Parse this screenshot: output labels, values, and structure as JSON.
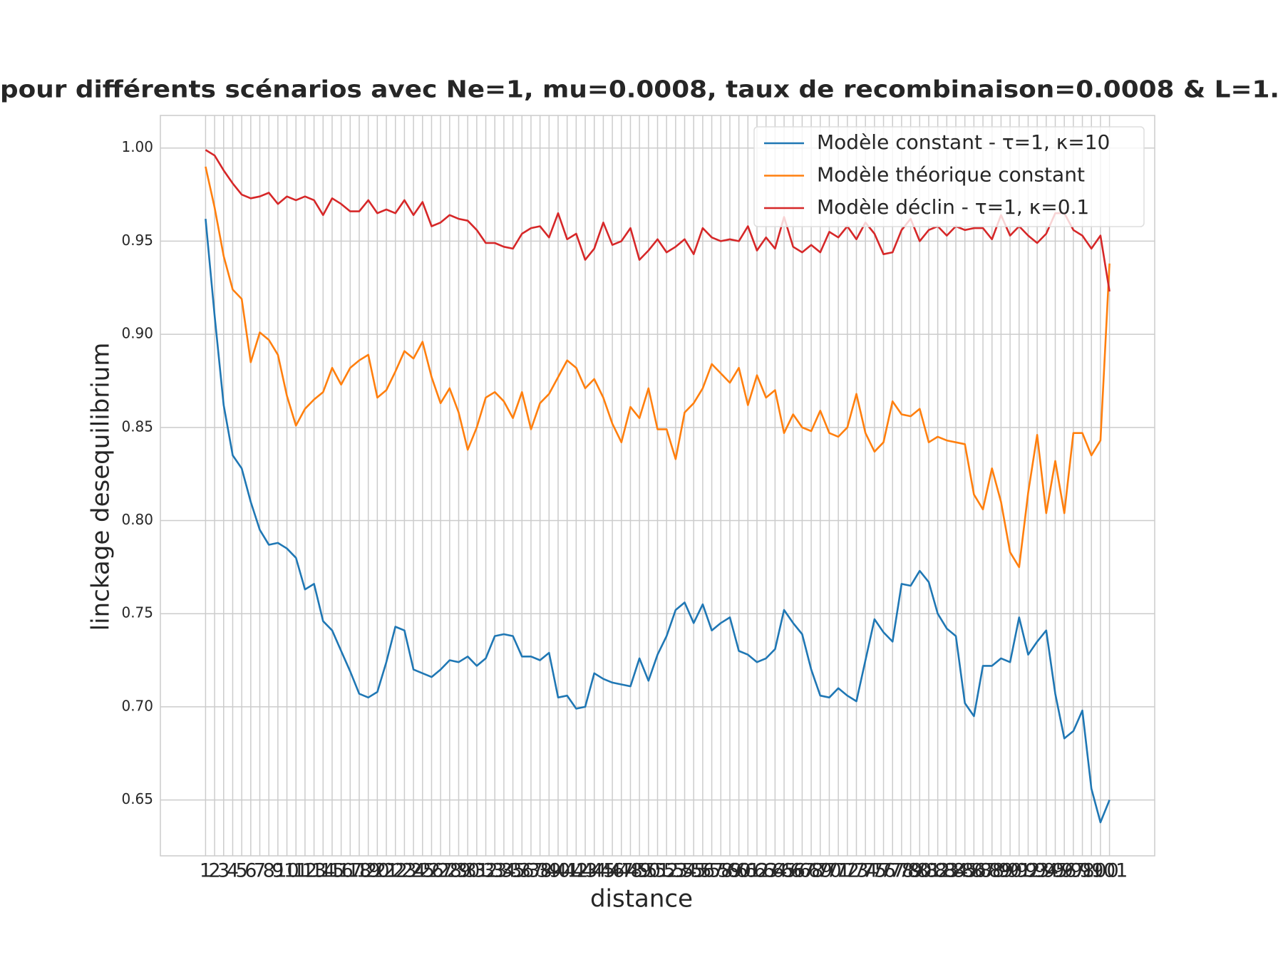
{
  "chart_data": {
    "type": "line",
    "title": "pour différents scénarios avec Ne=1, mu=0.0008, taux de recombinaison=0.0008 & L=1.",
    "x_label": "distance",
    "y_label": "linckage desequilibrium",
    "categories": [
      1,
      2,
      3,
      4,
      5,
      6,
      7,
      8,
      9,
      10,
      11,
      12,
      13,
      14,
      15,
      16,
      17,
      18,
      19,
      20,
      21,
      22,
      23,
      24,
      25,
      26,
      27,
      28,
      29,
      30,
      31,
      32,
      33,
      34,
      35,
      36,
      37,
      38,
      39,
      40,
      41,
      42,
      43,
      44,
      45,
      46,
      47,
      48,
      49,
      50,
      51,
      52,
      53,
      54,
      55,
      56,
      57,
      58,
      59,
      60,
      61,
      62,
      63,
      64,
      65,
      66,
      67,
      68,
      69,
      70,
      71,
      72,
      73,
      74,
      75,
      76,
      77,
      78,
      79,
      80,
      81,
      82,
      83,
      84,
      85,
      86,
      87,
      88,
      89,
      90,
      91,
      92,
      93,
      94,
      95,
      96,
      97,
      98,
      99,
      100,
      101
    ],
    "series": [
      {
        "name": "Modèle constant - τ=1, κ=10",
        "color": "#1f77b4",
        "values": [
          0.962,
          0.91,
          0.862,
          0.835,
          0.828,
          0.81,
          0.795,
          0.787,
          0.788,
          0.785,
          0.78,
          0.763,
          0.766,
          0.746,
          0.741,
          0.73,
          0.719,
          0.707,
          0.705,
          0.708,
          0.724,
          0.743,
          0.741,
          0.72,
          0.718,
          0.716,
          0.72,
          0.725,
          0.724,
          0.727,
          0.722,
          0.726,
          0.738,
          0.739,
          0.738,
          0.727,
          0.727,
          0.725,
          0.729,
          0.705,
          0.706,
          0.699,
          0.7,
          0.718,
          0.715,
          0.713,
          0.712,
          0.711,
          0.726,
          0.714,
          0.728,
          0.738,
          0.752,
          0.756,
          0.745,
          0.755,
          0.741,
          0.745,
          0.748,
          0.73,
          0.728,
          0.724,
          0.726,
          0.731,
          0.752,
          0.745,
          0.739,
          0.72,
          0.706,
          0.705,
          0.71,
          0.706,
          0.703,
          0.725,
          0.747,
          0.74,
          0.735,
          0.766,
          0.765,
          0.773,
          0.767,
          0.75,
          0.742,
          0.738,
          0.702,
          0.695,
          0.722,
          0.722,
          0.726,
          0.724,
          0.748,
          0.728,
          0.735,
          0.741,
          0.707,
          0.683,
          0.687,
          0.698,
          0.656,
          0.638,
          0.65
        ]
      },
      {
        "name": "Modèle théorique constant",
        "color": "#ff7f0e",
        "values": [
          0.99,
          0.968,
          0.942,
          0.924,
          0.919,
          0.885,
          0.901,
          0.897,
          0.889,
          0.867,
          0.851,
          0.86,
          0.865,
          0.869,
          0.882,
          0.873,
          0.882,
          0.886,
          0.889,
          0.866,
          0.87,
          0.88,
          0.891,
          0.887,
          0.896,
          0.877,
          0.863,
          0.871,
          0.858,
          0.838,
          0.85,
          0.866,
          0.869,
          0.864,
          0.855,
          0.869,
          0.849,
          0.863,
          0.868,
          0.877,
          0.886,
          0.882,
          0.871,
          0.876,
          0.866,
          0.852,
          0.842,
          0.861,
          0.855,
          0.871,
          0.849,
          0.849,
          0.833,
          0.858,
          0.863,
          0.871,
          0.884,
          0.879,
          0.874,
          0.882,
          0.862,
          0.878,
          0.866,
          0.87,
          0.847,
          0.857,
          0.85,
          0.848,
          0.859,
          0.847,
          0.845,
          0.85,
          0.868,
          0.847,
          0.837,
          0.842,
          0.864,
          0.857,
          0.856,
          0.86,
          0.842,
          0.845,
          0.843,
          0.842,
          0.841,
          0.814,
          0.806,
          0.828,
          0.81,
          0.783,
          0.775,
          0.815,
          0.846,
          0.804,
          0.832,
          0.804,
          0.847,
          0.847,
          0.835,
          0.843,
          0.938
        ]
      },
      {
        "name": "Modèle déclin - τ=1, κ=0.1",
        "color": "#d62728",
        "values": [
          0.999,
          0.996,
          0.988,
          0.981,
          0.975,
          0.973,
          0.974,
          0.976,
          0.97,
          0.974,
          0.972,
          0.974,
          0.972,
          0.964,
          0.973,
          0.97,
          0.966,
          0.966,
          0.972,
          0.965,
          0.967,
          0.965,
          0.972,
          0.964,
          0.971,
          0.958,
          0.96,
          0.964,
          0.962,
          0.961,
          0.956,
          0.949,
          0.949,
          0.947,
          0.946,
          0.954,
          0.957,
          0.958,
          0.952,
          0.965,
          0.951,
          0.954,
          0.94,
          0.946,
          0.96,
          0.948,
          0.95,
          0.957,
          0.94,
          0.945,
          0.951,
          0.944,
          0.947,
          0.951,
          0.943,
          0.957,
          0.952,
          0.95,
          0.951,
          0.95,
          0.958,
          0.945,
          0.952,
          0.946,
          0.963,
          0.947,
          0.944,
          0.948,
          0.944,
          0.955,
          0.952,
          0.958,
          0.951,
          0.96,
          0.954,
          0.943,
          0.944,
          0.956,
          0.962,
          0.95,
          0.956,
          0.958,
          0.953,
          0.958,
          0.956,
          0.957,
          0.957,
          0.951,
          0.964,
          0.953,
          0.958,
          0.953,
          0.949,
          0.954,
          0.965,
          0.965,
          0.956,
          0.953,
          0.946,
          0.953,
          0.923
        ]
      }
    ],
    "ylim": [
      0.62,
      1.0175
    ],
    "yticks": [
      {
        "value": 0.65,
        "label": "0.65"
      },
      {
        "value": 0.7,
        "label": "0.70"
      },
      {
        "value": 0.75,
        "label": "0.75"
      },
      {
        "value": 0.8,
        "label": "0.80"
      },
      {
        "value": 0.85,
        "label": "0.85"
      },
      {
        "value": 0.9,
        "label": "0.90"
      },
      {
        "value": 0.95,
        "label": "0.95"
      },
      {
        "value": 1.0,
        "label": "1.00"
      }
    ],
    "grid": true,
    "legend": "upper right"
  }
}
